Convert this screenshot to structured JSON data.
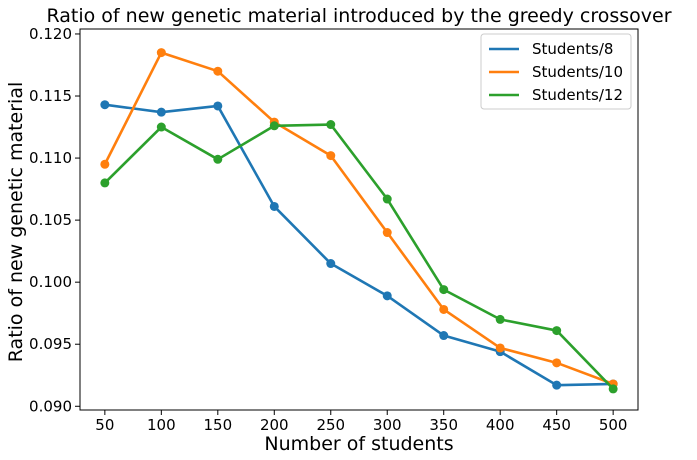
{
  "chart_data": {
    "type": "line",
    "title": "Ratio of new genetic material introduced by the greedy crossover",
    "xlabel": "Number of students",
    "ylabel": "Ratio of new genetic material",
    "x": [
      50,
      100,
      150,
      200,
      250,
      300,
      350,
      400,
      450,
      500
    ],
    "x_tick_labels": [
      "50",
      "100",
      "150",
      "200",
      "250",
      "300",
      "350",
      "400",
      "450",
      "500"
    ],
    "y_ticks": [
      0.09,
      0.095,
      0.1,
      0.105,
      0.11,
      0.115,
      0.12
    ],
    "y_tick_labels": [
      "0.090",
      "0.095",
      "0.100",
      "0.105",
      "0.110",
      "0.115",
      "0.120"
    ],
    "xlim": [
      28,
      522
    ],
    "ylim": [
      0.0897,
      0.1204
    ],
    "grid": false,
    "legend_position": "top-right",
    "series": [
      {
        "name": "Students/8",
        "color": "#1f77b4",
        "values": [
          0.1143,
          0.1137,
          0.1142,
          0.1061,
          0.1015,
          0.0989,
          0.0957,
          0.0944,
          0.0917,
          0.0918
        ]
      },
      {
        "name": "Students/10",
        "color": "#ff7f0e",
        "values": [
          0.1095,
          0.1185,
          0.117,
          0.1129,
          0.1102,
          0.104,
          0.0978,
          0.0947,
          0.0935,
          0.0918
        ]
      },
      {
        "name": "Students/12",
        "color": "#2ca02c",
        "values": [
          0.108,
          0.1125,
          0.1099,
          0.1126,
          0.1127,
          0.1067,
          0.0994,
          0.097,
          0.0961,
          0.0914
        ]
      }
    ]
  }
}
